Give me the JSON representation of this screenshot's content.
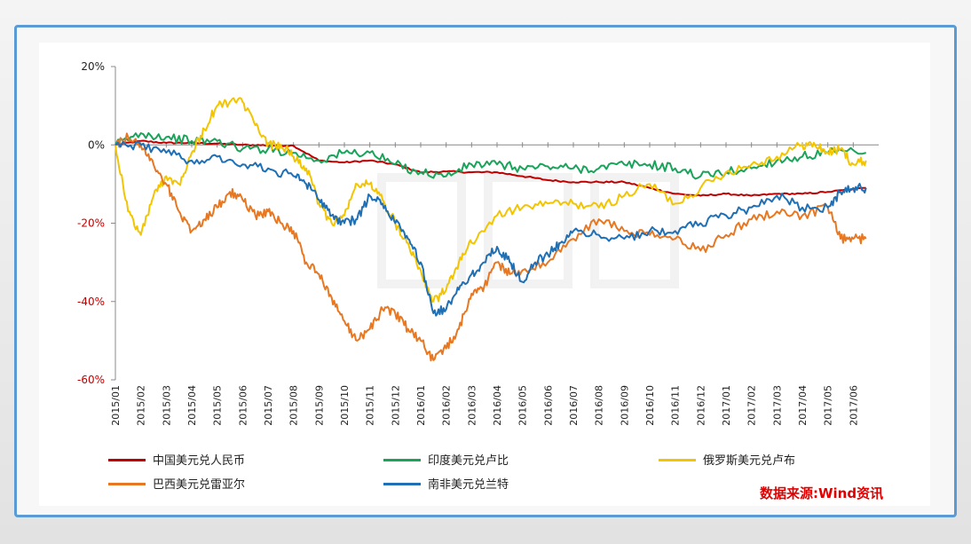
{
  "source_label": "数据来源:Wind资讯",
  "colors": {
    "cny": "#c00000",
    "inr": "#1aa35a",
    "rub": "#f2c500",
    "brl": "#e87722",
    "zar": "#1f6fb5"
  },
  "chart_data": {
    "type": "line",
    "title": "",
    "xlabel": "",
    "ylabel": "",
    "ylim": [
      -0.6,
      0.2
    ],
    "yticks": [
      0.2,
      0.0,
      -0.2,
      -0.4,
      -0.6
    ],
    "ytick_labels": [
      "20%",
      "0%",
      "-20%",
      "-40%",
      "-60%"
    ],
    "xlim": [
      0,
      30
    ],
    "categories": [
      "2015/01",
      "2015/02",
      "2015/03",
      "2015/04",
      "2015/05",
      "2015/06",
      "2015/07",
      "2015/08",
      "2015/09",
      "2015/10",
      "2015/11",
      "2015/12",
      "2016/01",
      "2016/02",
      "2016/03",
      "2016/04",
      "2016/05",
      "2016/06",
      "2016/07",
      "2016/08",
      "2016/09",
      "2016/10",
      "2016/11",
      "2016/12",
      "2017/01",
      "2017/02",
      "2017/03",
      "2017/04",
      "2017/05",
      "2017/06"
    ],
    "legend_position": "bottom",
    "grid": false,
    "series": [
      {
        "name": "中国美元兑人民币",
        "color_key": "cny",
        "x": [
          0,
          1,
          2,
          3,
          4,
          5,
          6,
          7,
          8,
          9,
          10,
          11,
          12,
          13,
          14,
          15,
          16,
          17,
          18,
          19,
          20,
          21,
          22,
          23,
          24,
          25,
          26,
          27,
          28,
          29.5
        ],
        "values": [
          0.0,
          0.01,
          0.005,
          0.005,
          0.003,
          0.0,
          -0.001,
          -0.002,
          -0.04,
          -0.045,
          -0.04,
          -0.05,
          -0.07,
          -0.068,
          -0.07,
          -0.07,
          -0.08,
          -0.09,
          -0.095,
          -0.095,
          -0.095,
          -0.11,
          -0.125,
          -0.13,
          -0.125,
          -0.13,
          -0.125,
          -0.125,
          -0.12,
          -0.11
        ]
      },
      {
        "name": "印度美元兑卢比",
        "color_key": "inr",
        "x": [
          0,
          1,
          2,
          3,
          4,
          5,
          6,
          7,
          8,
          9,
          10,
          11,
          12,
          13,
          14,
          15,
          16,
          17,
          18,
          19,
          20,
          21,
          22,
          23,
          24,
          25,
          26,
          27,
          28,
          29.5
        ],
        "values": [
          0.0,
          0.03,
          0.02,
          0.01,
          0.01,
          -0.01,
          -0.01,
          -0.02,
          -0.04,
          -0.02,
          -0.02,
          -0.05,
          -0.07,
          -0.08,
          -0.05,
          -0.05,
          -0.06,
          -0.055,
          -0.06,
          -0.06,
          -0.05,
          -0.05,
          -0.06,
          -0.08,
          -0.07,
          -0.06,
          -0.04,
          -0.03,
          -0.02,
          -0.02
        ]
      },
      {
        "name": "俄罗斯美元兑卢布",
        "color_key": "rub",
        "x": [
          0,
          0.5,
          1,
          1.5,
          2,
          2.5,
          3,
          3.5,
          4,
          4.5,
          5,
          5.5,
          6,
          6.5,
          7,
          7.5,
          8,
          8.5,
          9,
          9.5,
          10,
          10.5,
          11,
          11.5,
          12,
          12.5,
          13,
          13.5,
          14,
          15,
          16,
          17,
          18,
          19,
          20,
          21,
          22,
          23,
          24,
          25,
          26,
          27,
          27.5,
          28,
          28.5,
          29,
          29.5
        ],
        "values": [
          0.0,
          -0.17,
          -0.23,
          -0.13,
          -0.08,
          -0.1,
          -0.02,
          0.04,
          0.1,
          0.11,
          0.11,
          0.05,
          0.0,
          0.0,
          -0.03,
          -0.06,
          -0.15,
          -0.2,
          -0.18,
          -0.1,
          -0.1,
          -0.14,
          -0.2,
          -0.25,
          -0.32,
          -0.4,
          -0.37,
          -0.3,
          -0.25,
          -0.18,
          -0.16,
          -0.15,
          -0.15,
          -0.16,
          -0.13,
          -0.1,
          -0.15,
          -0.11,
          -0.07,
          -0.05,
          -0.03,
          0.0,
          0.0,
          -0.02,
          -0.01,
          -0.05,
          -0.04
        ]
      },
      {
        "name": "巴西美元兑雷亚尔",
        "color_key": "brl",
        "x": [
          0,
          0.5,
          1,
          1.5,
          2,
          2.5,
          3,
          3.5,
          4,
          4.5,
          5,
          5.5,
          6,
          6.5,
          7,
          7.5,
          8,
          8.5,
          9,
          9.5,
          10,
          10.5,
          11,
          11.5,
          12,
          12.5,
          13,
          13.5,
          14,
          14.5,
          15,
          15.5,
          16,
          17,
          18,
          19,
          20,
          21,
          22,
          23,
          24,
          25,
          26,
          27,
          28,
          28.5,
          29,
          29.5
        ],
        "values": [
          0.0,
          0.02,
          0.0,
          -0.05,
          -0.1,
          -0.17,
          -0.22,
          -0.19,
          -0.16,
          -0.12,
          -0.14,
          -0.18,
          -0.17,
          -0.2,
          -0.22,
          -0.3,
          -0.33,
          -0.39,
          -0.45,
          -0.5,
          -0.47,
          -0.42,
          -0.43,
          -0.47,
          -0.5,
          -0.55,
          -0.52,
          -0.47,
          -0.38,
          -0.36,
          -0.3,
          -0.33,
          -0.32,
          -0.3,
          -0.24,
          -0.19,
          -0.22,
          -0.23,
          -0.24,
          -0.27,
          -0.23,
          -0.19,
          -0.17,
          -0.18,
          -0.16,
          -0.24,
          -0.24,
          -0.24
        ]
      },
      {
        "name": "南非美元兑兰特",
        "color_key": "zar",
        "x": [
          0,
          1,
          2,
          3,
          4,
          5,
          6,
          7,
          7.5,
          8,
          8.5,
          9,
          9.5,
          10,
          10.5,
          11,
          11.5,
          12,
          12.5,
          13,
          13.5,
          14,
          14.5,
          15,
          15.5,
          16,
          16.5,
          17,
          17.5,
          18,
          19,
          20,
          21,
          22,
          23,
          24,
          25,
          26,
          27,
          28,
          28.5,
          29,
          29.5
        ],
        "values": [
          0.0,
          0.0,
          -0.02,
          -0.04,
          -0.03,
          -0.05,
          -0.06,
          -0.08,
          -0.1,
          -0.14,
          -0.18,
          -0.2,
          -0.19,
          -0.13,
          -0.15,
          -0.2,
          -0.24,
          -0.3,
          -0.43,
          -0.42,
          -0.37,
          -0.33,
          -0.3,
          -0.26,
          -0.3,
          -0.35,
          -0.3,
          -0.28,
          -0.25,
          -0.22,
          -0.23,
          -0.24,
          -0.22,
          -0.22,
          -0.2,
          -0.18,
          -0.16,
          -0.13,
          -0.16,
          -0.16,
          -0.12,
          -0.11,
          -0.11
        ]
      }
    ]
  }
}
